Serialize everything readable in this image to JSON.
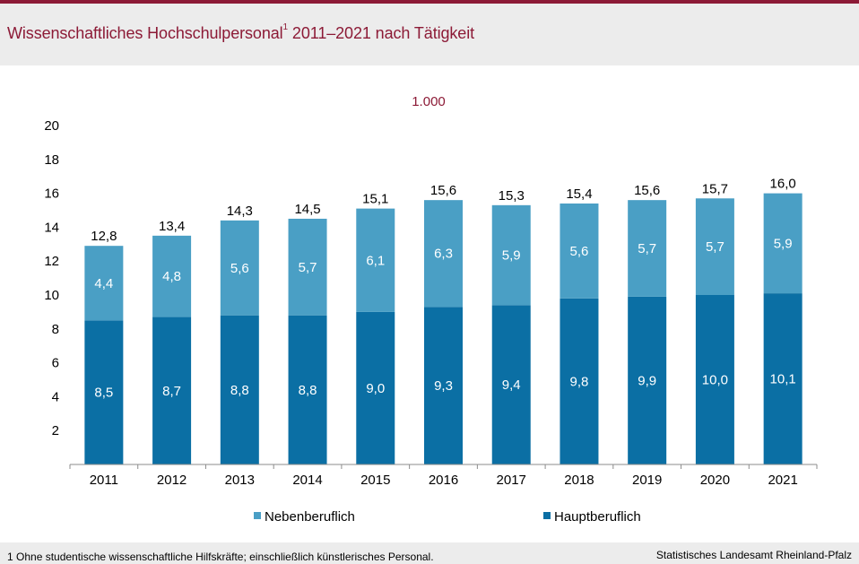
{
  "title": {
    "text": "Wissenschaftliches Hochschulpersonal",
    "sup": "1",
    "tail": " 2011–2021 nach Tätigkeit"
  },
  "footnote": "1 Ohne studentische wissenschaftliche Hilfskräfte;  einschließlich künstlerisches Personal.",
  "source": "Statistisches Landesamt Rheinland-Pfalz",
  "colors": {
    "haupt": "#0b6fa4",
    "neben": "#4a9fc5",
    "accent": "#8c1a36"
  },
  "chart_data": {
    "type": "bar",
    "stacked": true,
    "unit_label": "1.000",
    "categories": [
      "2011",
      "2012",
      "2013",
      "2014",
      "2015",
      "2016",
      "2017",
      "2018",
      "2019",
      "2020",
      "2021"
    ],
    "series": [
      {
        "name": "Hauptberuflich",
        "values": [
          8.5,
          8.7,
          8.8,
          8.8,
          9.0,
          9.3,
          9.4,
          9.8,
          9.9,
          10.0,
          10.1
        ],
        "labels": [
          "8,5",
          "8,7",
          "8,8",
          "8,8",
          "9,0",
          "9,3",
          "9,4",
          "9,8",
          "9,9",
          "10,0",
          "10,1"
        ]
      },
      {
        "name": "Nebenberuflich",
        "values": [
          4.4,
          4.8,
          5.6,
          5.7,
          6.1,
          6.3,
          5.9,
          5.6,
          5.7,
          5.7,
          5.9
        ],
        "labels": [
          "4,4",
          "4,8",
          "5,6",
          "5,7",
          "6,1",
          "6,3",
          "5,9",
          "5,6",
          "5,7",
          "5,7",
          "5,9"
        ]
      }
    ],
    "totals": [
      12.8,
      13.4,
      14.3,
      14.5,
      15.1,
      15.6,
      15.3,
      15.4,
      15.6,
      15.7,
      16.0
    ],
    "total_labels": [
      "12,8",
      "13,4",
      "14,3",
      "14,5",
      "15,1",
      "15,6",
      "15,3",
      "15,4",
      "15,6",
      "15,7",
      "16,0"
    ],
    "yticks": [
      2,
      4,
      6,
      8,
      10,
      12,
      14,
      16,
      18,
      20
    ],
    "ylim": [
      0,
      20
    ],
    "legend": [
      "Nebenberuflich",
      "Hauptberuflich"
    ],
    "legend_position": "bottom",
    "grid": false
  }
}
